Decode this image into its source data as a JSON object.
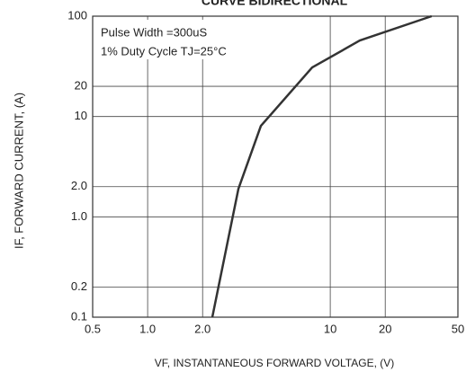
{
  "chart_data": {
    "type": "line",
    "title": "CURVE BIDIRECTIONAL",
    "x_label": "VF, INSTANTANEOUS FORWARD VOLTAGE, (V)",
    "y_label": "IF, FORWARD CURRENT, (A)",
    "annotations": [
      "Pulse Width =300uS",
      "1% Duty Cycle TJ=25°C"
    ],
    "log_x": true,
    "log_y": true,
    "grid": true,
    "xlim": [
      0.5,
      50
    ],
    "ylim": [
      0.1,
      100
    ],
    "xticks": [
      0.5,
      {
        "value": 1,
        "label": "1.0"
      },
      {
        "value": 2,
        "label": "2.0"
      },
      10,
      20,
      50
    ],
    "yticks": [
      0.1,
      0.2,
      {
        "value": 1,
        "label": "1.0"
      },
      {
        "value": 2,
        "label": "2.0"
      },
      10,
      20,
      100
    ],
    "x": [
      2.26,
      3.14,
      4.17,
      7.96,
      14.5,
      35.9
    ],
    "series": [
      {
        "name": "IF",
        "color": "#333333",
        "values": [
          0.1,
          1.9,
          8.07,
          30.8,
          57.2,
          100
        ]
      }
    ]
  }
}
